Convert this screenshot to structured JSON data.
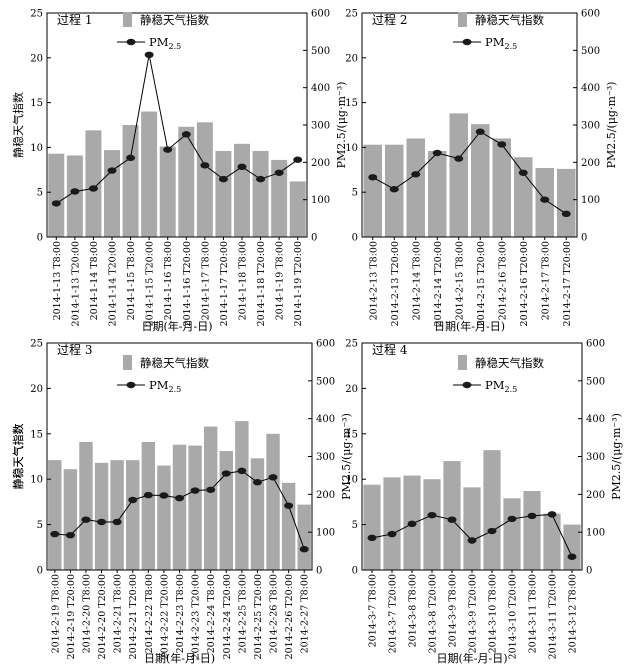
{
  "chart_data": [
    {
      "type": "bar+line",
      "title": "过程 1",
      "xlabel": "日期(年-月-日)",
      "ylabel": "静稳天气指数",
      "y2label": "PM2.5/(μg·m⁻³)",
      "ylim": [
        0,
        25
      ],
      "y2lim": [
        0,
        600
      ],
      "yticks": [
        "0",
        "5",
        "10",
        "15",
        "20",
        "25"
      ],
      "y2ticks": [
        "0",
        "100",
        "200",
        "300",
        "400",
        "500",
        "600"
      ],
      "categories": [
        "2014-1-13 T8:00",
        "2014-1-13 T20:00",
        "2014-1-14 T8:00",
        "2014-1-14 T20:00",
        "2014-1-15 T8:00",
        "2014-1-15 T20:00",
        "2014-1-16 T8:00",
        "2014-1-16 T20:00",
        "2014-1-17 T8:00",
        "2014-1-17 T20:00",
        "2014-1-18 T8:00",
        "2014-1-18 T20:00",
        "2014-1-19 T8:00",
        "2014-1-19 T20:00"
      ],
      "xtick_labels": [
        "2014-1-13 T8:00",
        "2014-1-13 T20:00",
        "2014-1-14 T8:00",
        "2014-1-14 T20:00",
        "2014-1-15 T8:00",
        "2014-1-15 T20:00",
        "2014-1-16 T8:00",
        "2014-1-16 T20:00",
        "2014-1-17 T8:00",
        "2014-1-17 T20:00",
        "2014-1-18 T8:00",
        "2014-1-18 T20:00",
        "2014-1-19 T8:00",
        "2014-1-19 T20:00"
      ],
      "series": [
        {
          "name": "静稳天气指数",
          "kind": "bar",
          "values": [
            9.3,
            9.1,
            11.9,
            9.7,
            12.5,
            14.0,
            10.1,
            12.3,
            12.8,
            9.6,
            10.4,
            9.6,
            8.6,
            6.2
          ]
        },
        {
          "name": "PM2.5",
          "kind": "line",
          "values": [
            90,
            122,
            130,
            178,
            212,
            488,
            234,
            275,
            192,
            155,
            188,
            155,
            172,
            207
          ]
        }
      ],
      "legend": {
        "bar_label": "静稳天气指数",
        "line_main": "PM",
        "line_sub": "2.5"
      }
    },
    {
      "type": "bar+line",
      "title": "过程 2",
      "xlabel": "日期(年-月-日)",
      "ylabel": "",
      "y2label": "PM2.5/(μg·m⁻³)",
      "ylim": [
        0,
        25
      ],
      "y2lim": [
        0,
        600
      ],
      "yticks": [
        "0",
        "5",
        "10",
        "15",
        "20",
        "25"
      ],
      "y2ticks": [
        "0",
        "100",
        "200",
        "300",
        "400",
        "500",
        "600"
      ],
      "categories": [
        "2014-2-13 T8:00",
        "2014-2-13 T20:00",
        "2014-2-14 T8:00",
        "2014-2-14 T20:00",
        "2014-2-15 T8:00",
        "2014-2-15 T20:00",
        "2014-2-16 T8:00",
        "2014-2-16 T20:00",
        "2014-2-17 T8:00",
        "2014-2-17 T20:00"
      ],
      "xtick_labels": [
        "2014-2-13 T8:00",
        "2014-2-13 T20:00",
        "2014-2-14 T8:00",
        "2014-2-14 T20:00",
        "2014-2-15 T8:00",
        "2014-2-15 T20:00",
        "2014-2-16 T8:00",
        "2014-2-16 T20:00",
        "2014-2-17 T8:00",
        "2014-2-17 T20:00"
      ],
      "series": [
        {
          "name": "静稳天气指数",
          "kind": "bar",
          "values": [
            10.3,
            10.3,
            11.0,
            9.6,
            13.8,
            12.6,
            11.0,
            8.9,
            7.7,
            7.6
          ]
        },
        {
          "name": "PM2.5",
          "kind": "line",
          "values": [
            160,
            128,
            168,
            225,
            210,
            282,
            248,
            172,
            100,
            62
          ]
        }
      ],
      "legend": {
        "bar_label": "静稳天气指数",
        "line_main": "PM",
        "line_sub": "2.5"
      }
    },
    {
      "type": "bar+line",
      "title": "过程 3",
      "xlabel": "日期(年-月-日)",
      "ylabel": "静稳天气指数",
      "y2label": "PM2.5/(μg·m⁻³)",
      "ylim": [
        0,
        25
      ],
      "y2lim": [
        0,
        600
      ],
      "yticks": [
        "0",
        "5",
        "10",
        "15",
        "20",
        "25"
      ],
      "y2ticks": [
        "0",
        "100",
        "200",
        "300",
        "400",
        "500",
        "600"
      ],
      "categories": [
        "2014-2-19 T8:00",
        "2014-2-19 T20:00",
        "2014-2-20 T8:00",
        "2014-2-20 T20:00",
        "2014-2-21 T8:00",
        "2014-2-21 T20:00",
        "2014-2-22 T8:00",
        "2014-2-22 T20:00",
        "2014-2-23 T8:00",
        "2014-2-23 T20:00",
        "2014-2-24 T8:00",
        "2014-2-24 T20:00",
        "2014-2-25 T8:00",
        "2014-2-25 T20:00",
        "2014-2-26 T8:00",
        "2014-2-26 T20:00",
        "2014-2-27 T8:00"
      ],
      "xtick_labels": [
        "2014-2-19 T8:00",
        "2014-2-19 T20:00",
        "2014-2-20 T8:00",
        "2014-2-20 T20:00",
        "2014-2-21 T8:00",
        "2014-2-21 T20:00",
        "2014-2-22 T8:00",
        "2014-2-22 T20:00",
        "2014-2-23 T8:00",
        "2014-2-23 T20:00",
        "2014-2-24 T8:00",
        "2014-2-24 T20:00",
        "2014-2-25 T8:00",
        "2014-2-25 T20:00",
        "2014-2-26 T8:00",
        "2014-2-26 T20:00",
        "2014-2-27 T8:00"
      ],
      "series": [
        {
          "name": "静稳天气指数",
          "kind": "bar",
          "values": [
            12.1,
            11.1,
            14.1,
            11.8,
            12.1,
            12.1,
            14.1,
            11.5,
            13.8,
            13.7,
            15.8,
            13.1,
            16.4,
            12.3,
            15.0,
            9.6,
            7.2
          ]
        },
        {
          "name": "PM2.5",
          "kind": "line",
          "values": [
            95,
            92,
            133,
            127,
            127,
            185,
            198,
            197,
            190,
            210,
            212,
            255,
            262,
            232,
            245,
            170,
            55
          ]
        }
      ],
      "legend": {
        "bar_label": "静稳天气指数",
        "line_main": "PM",
        "line_sub": "2.5"
      }
    },
    {
      "type": "bar+line",
      "title": "过程 4",
      "xlabel": "日期(年-月-日)",
      "ylabel": "静稳天气指数",
      "y2label": "PM2.5/(μg·m⁻³)",
      "ylim": [
        0,
        25
      ],
      "y2lim": [
        0,
        600
      ],
      "yticks": [
        "0",
        "5",
        "10",
        "15",
        "20",
        "25"
      ],
      "y2ticks": [
        "0",
        "100",
        "200",
        "300",
        "400",
        "500",
        "600"
      ],
      "categories": [
        "2014-3-7 T8:00",
        "2014-3-7 T20:00",
        "2014-3-8 T8:00",
        "2014-3-8 T20:00",
        "2014-3-9 T8:00",
        "2014-3-9 T20:00",
        "2014-3-10 T8:00",
        "2014-3-10 T20:00",
        "2014-3-11 T8:00",
        "2014-3-11 T20:00",
        "2014-3-12 T8:00"
      ],
      "xtick_labels": [
        "2014-3-7 T8:00",
        "2014-3-7 T20:00",
        "2014-3-8 T8:00",
        "2014-3-8 T20:00",
        "2014-3-9 T8:00",
        "2014-3-9 T20:00",
        "2014-3-10 T8:00",
        "2014-3-10 T20:00",
        "2014-3-11 T8:00",
        "2014-3-11 T20:00",
        "2014-3-12 T8:00"
      ],
      "series": [
        {
          "name": "静稳天气指数",
          "kind": "bar",
          "values": [
            9.4,
            10.2,
            10.4,
            10.0,
            12.0,
            9.1,
            13.2,
            7.9,
            8.7,
            6.2,
            5.0
          ]
        },
        {
          "name": "PM2.5",
          "kind": "line",
          "values": [
            85,
            95,
            122,
            145,
            133,
            78,
            103,
            135,
            143,
            147,
            35
          ]
        }
      ],
      "legend": {
        "bar_label": "静稳天气指数",
        "line_main": "PM",
        "line_sub": "2.5"
      }
    }
  ],
  "colors": {
    "bar": "#a9a9a9",
    "line": "#000000",
    "marker": "#1a1a1a",
    "axis": "#000000"
  }
}
